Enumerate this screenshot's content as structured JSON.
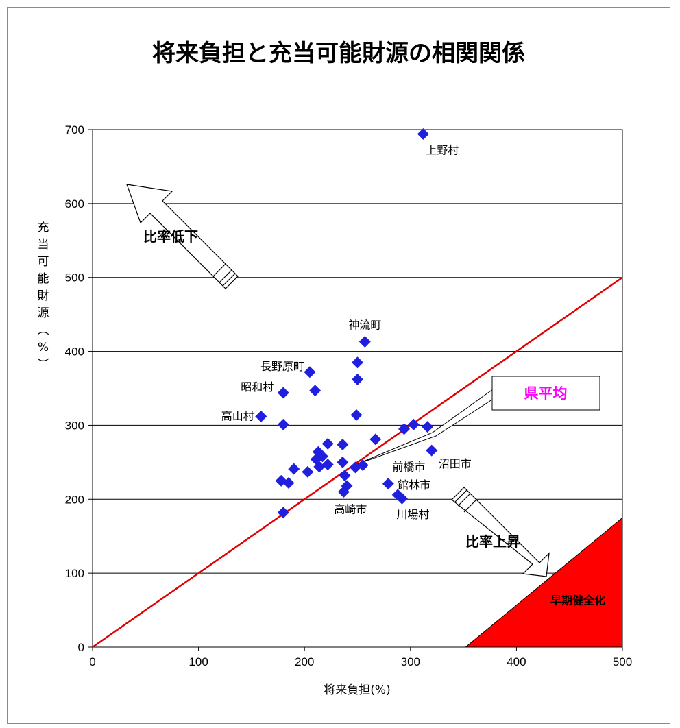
{
  "chart_data": {
    "type": "scatter",
    "title": "将来負担と充当可能財源の相関関係",
    "xlabel": "将来負担(%)",
    "ylabel": "充当可能財源(%)",
    "xlim": [
      0,
      500
    ],
    "ylim": [
      0,
      700
    ],
    "x_ticks": [
      0,
      100,
      200,
      300,
      400,
      500
    ],
    "y_ticks": [
      0,
      100,
      200,
      300,
      400,
      500,
      600,
      700
    ],
    "grid": "horizontal",
    "marker_color": "#1f1fdd",
    "line_color": "#e00000",
    "zone_color": "#ff0000",
    "reference_line": {
      "from": [
        0,
        0
      ],
      "to": [
        500,
        500
      ]
    },
    "points": [
      {
        "x": 312,
        "y": 694,
        "label": "上野村"
      },
      {
        "x": 257,
        "y": 413,
        "label": "神流町"
      },
      {
        "x": 250,
        "y": 385
      },
      {
        "x": 205,
        "y": 372,
        "label": "長野原町"
      },
      {
        "x": 250,
        "y": 362
      },
      {
        "x": 210,
        "y": 347
      },
      {
        "x": 180,
        "y": 344,
        "label": "昭和村"
      },
      {
        "x": 249,
        "y": 314
      },
      {
        "x": 159,
        "y": 312,
        "label": "高山村"
      },
      {
        "x": 180,
        "y": 301
      },
      {
        "x": 303,
        "y": 301
      },
      {
        "x": 316,
        "y": 298
      },
      {
        "x": 294,
        "y": 295
      },
      {
        "x": 267,
        "y": 281
      },
      {
        "x": 222,
        "y": 275
      },
      {
        "x": 236,
        "y": 274
      },
      {
        "x": 320,
        "y": 266,
        "label": "沼田市"
      },
      {
        "x": 213,
        "y": 264
      },
      {
        "x": 217,
        "y": 258
      },
      {
        "x": 211,
        "y": 254
      },
      {
        "x": 236,
        "y": 250
      },
      {
        "x": 222,
        "y": 247
      },
      {
        "x": 255,
        "y": 246
      },
      {
        "x": 214,
        "y": 244
      },
      {
        "x": 248,
        "y": 243
      },
      {
        "x": 190,
        "y": 241
      },
      {
        "x": 203,
        "y": 237
      },
      {
        "x": 238,
        "y": 232
      },
      {
        "x": 178,
        "y": 225
      },
      {
        "x": 185,
        "y": 222
      },
      {
        "x": 279,
        "y": 221,
        "label": "前橋市"
      },
      {
        "x": 240,
        "y": 218
      },
      {
        "x": 237,
        "y": 210,
        "label": "高崎市"
      },
      {
        "x": 288,
        "y": 206,
        "label": "館林市"
      },
      {
        "x": 292,
        "y": 201,
        "label": "川場村"
      },
      {
        "x": 180,
        "y": 182
      }
    ],
    "annotations": {
      "callout": "県平均",
      "arrow_up": "比率低下",
      "arrow_down": "比率上昇",
      "zone": "早期健全化"
    }
  }
}
